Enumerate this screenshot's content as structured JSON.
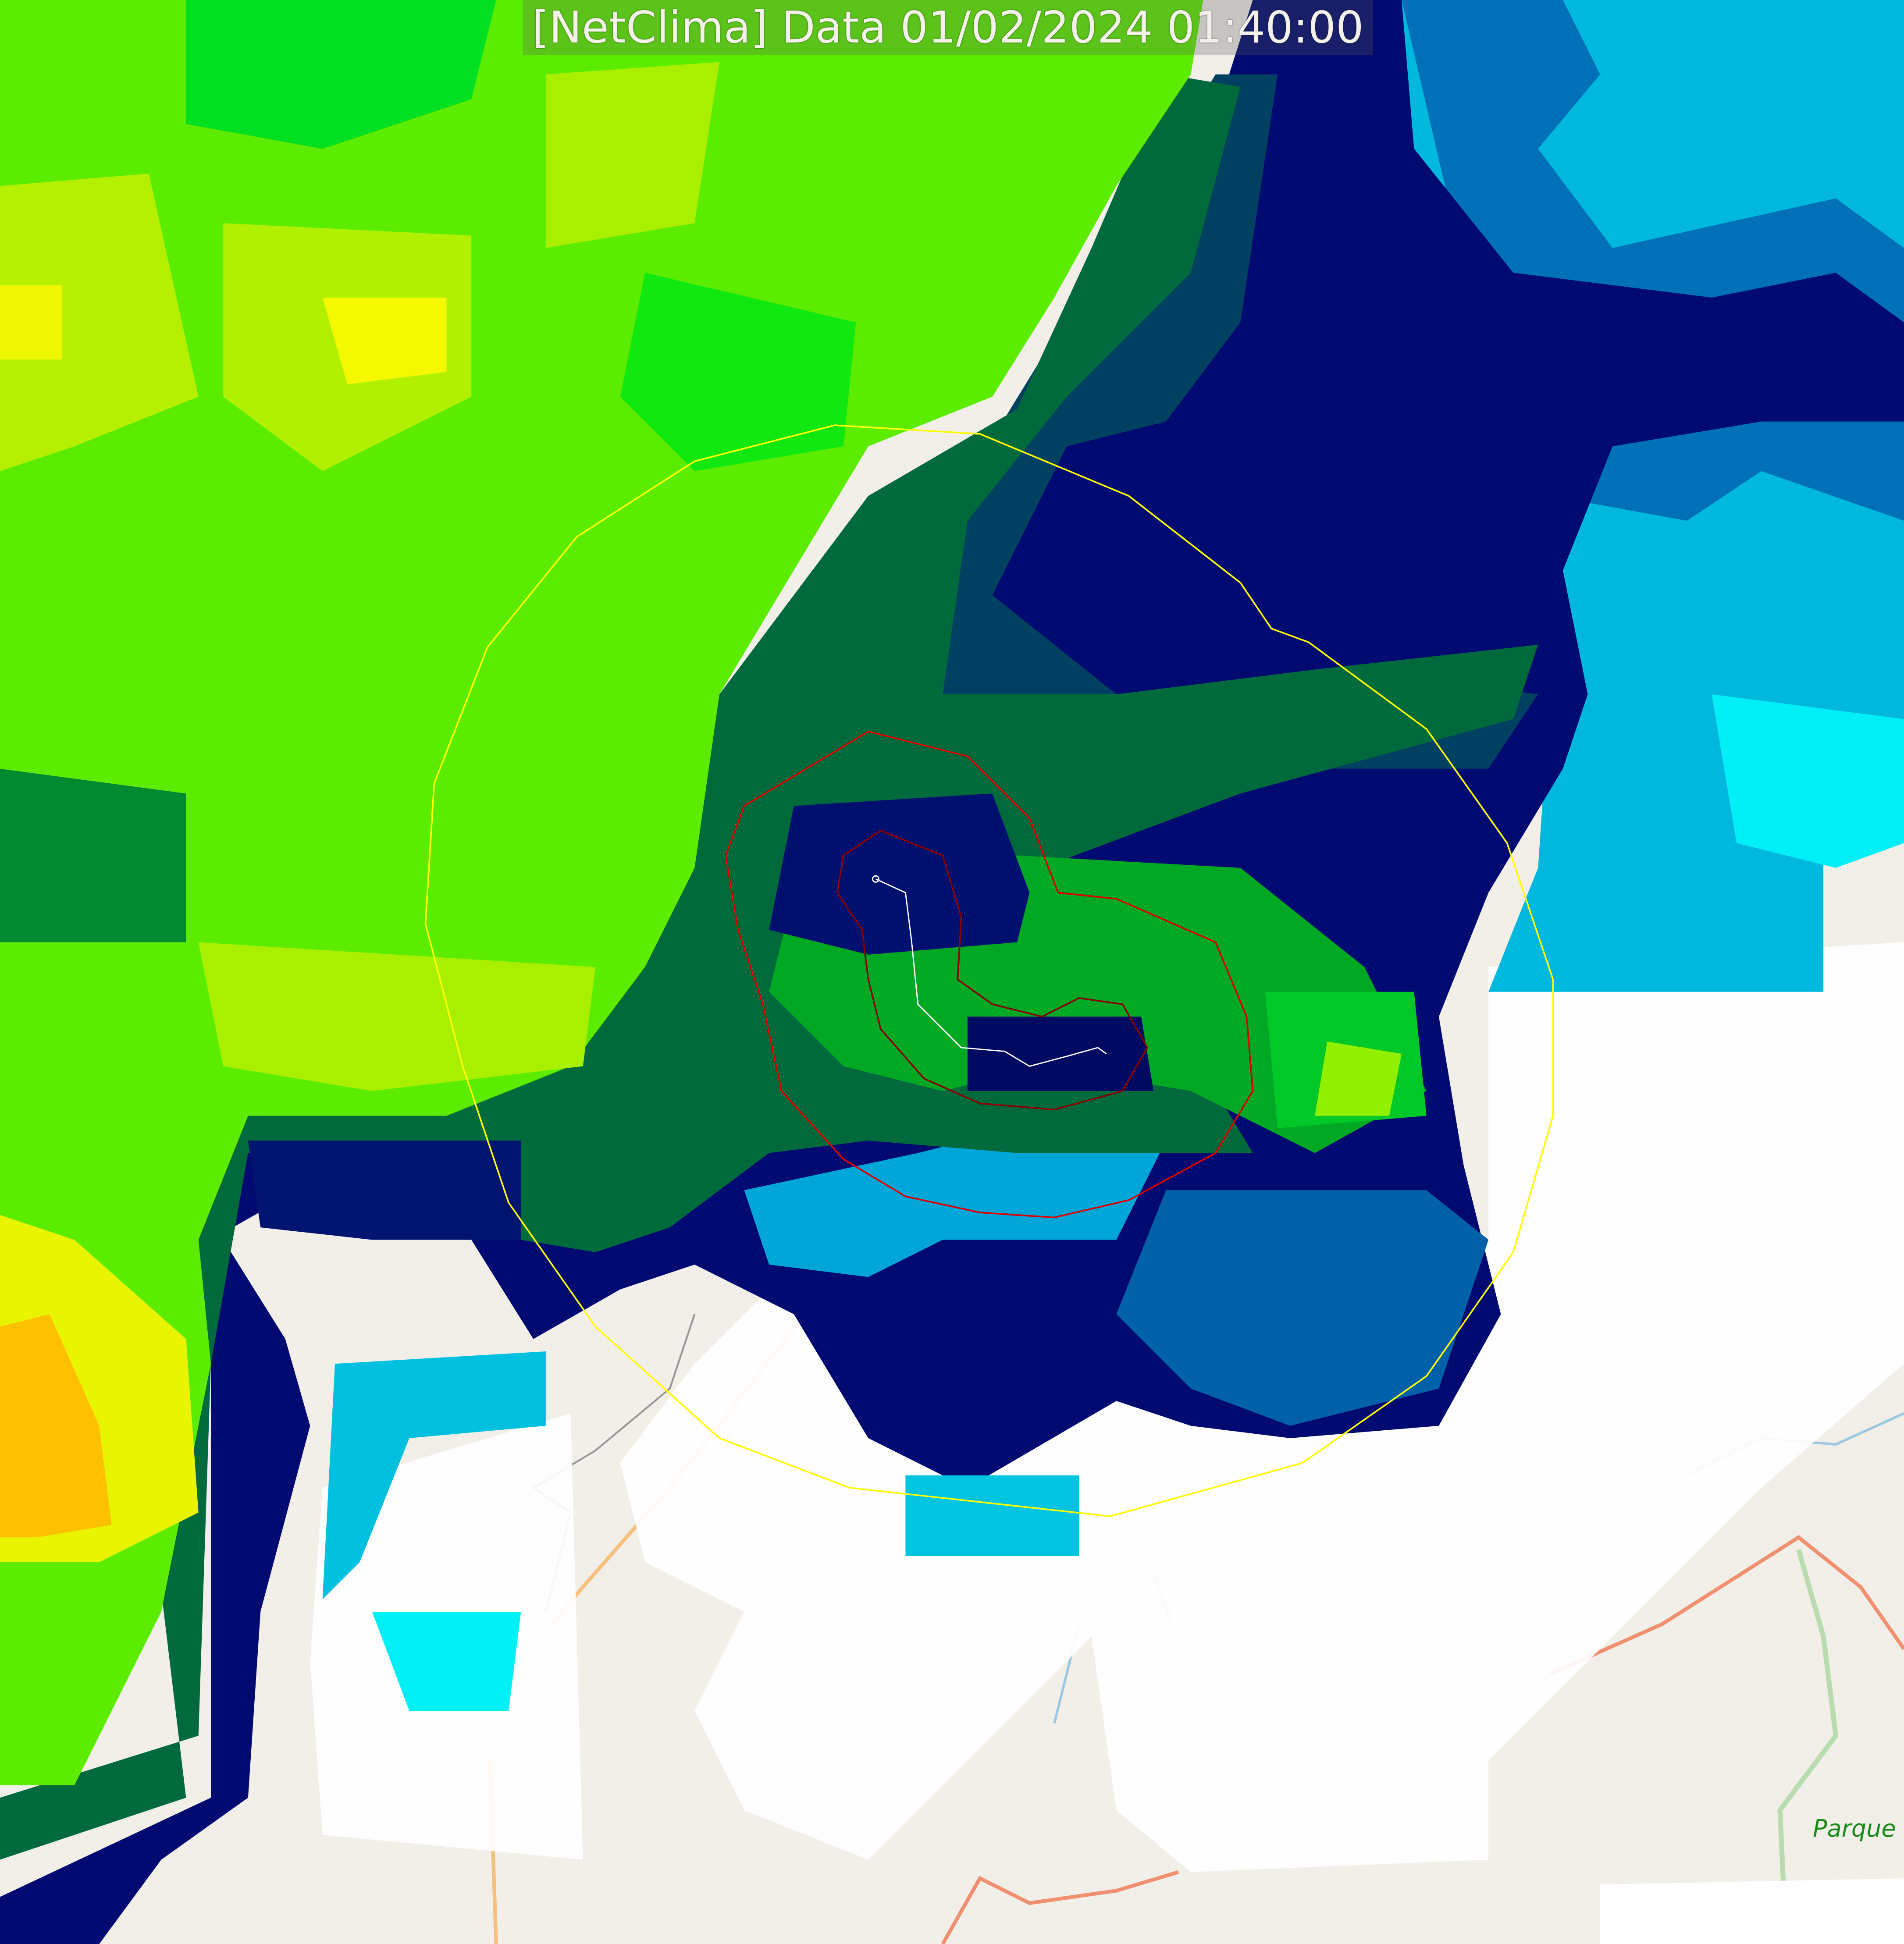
{
  "title": "[NetClima] Data 01/02/2024 01:40:00",
  "map_labels": {
    "park": "Parque"
  },
  "colors": {
    "basemap": "#f2efe9",
    "cloud_white": "#ffffff",
    "cyan": "#00e5ee",
    "light_blue": "#00a0cc",
    "blue": "#0066aa",
    "navy": "#000c6e",
    "dark_teal": "#003d5a",
    "dark_green": "#006a3a",
    "green": "#00b020",
    "lime": "#5cf000",
    "yellow_green": "#b0f000",
    "yellow": "#ffee00",
    "orange": "#ffb000",
    "outer_ring": "#ffff00",
    "inner_contour": "#dd0000",
    "track": "#ffffff",
    "road": "#f0a080",
    "river": "#9ac8e0"
  }
}
